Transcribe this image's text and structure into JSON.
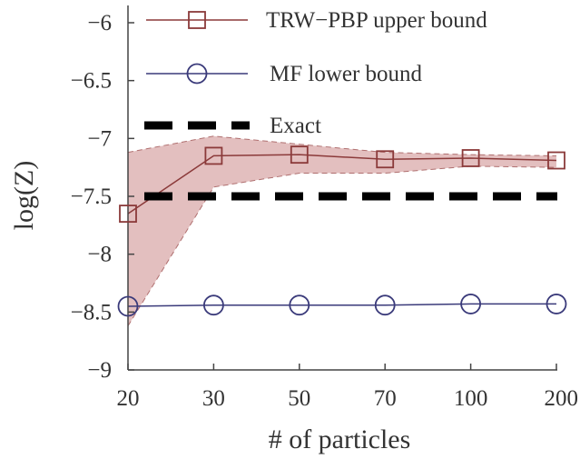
{
  "chart_data": {
    "type": "line",
    "xlabel": "# of particles",
    "ylabel": "log(Z)",
    "x_categories": [
      "20",
      "30",
      "50",
      "70",
      "100",
      "200"
    ],
    "ylim": [
      -9,
      -5.9
    ],
    "y_ticks": [
      -6,
      -6.5,
      -7,
      -7.5,
      -8,
      -8.5,
      -9
    ],
    "y_tick_labels": [
      "−6",
      "−6.5",
      "−7",
      "−7.5",
      "−8",
      "−8.5",
      "−9"
    ],
    "grid": false,
    "legend_position": "top-right",
    "series": [
      {
        "name": "TRW−PBP upper bound",
        "marker": "square",
        "color": "#8b3a3a",
        "values": [
          -7.65,
          -7.15,
          -7.14,
          -7.18,
          -7.17,
          -7.19
        ],
        "band_upper": [
          -7.12,
          -6.98,
          -7.05,
          -7.12,
          -7.14,
          -7.15
        ],
        "band_lower": [
          -8.62,
          -7.42,
          -7.3,
          -7.3,
          -7.24,
          -7.25
        ],
        "band_color": "#d9a9a9"
      },
      {
        "name": "MF lower bound",
        "marker": "circle",
        "color": "#3a3a7a",
        "values": [
          -8.45,
          -8.44,
          -8.44,
          -8.44,
          -8.43,
          -8.43
        ]
      },
      {
        "name": "Exact",
        "marker": "none",
        "style": "dashed",
        "color": "#000000",
        "values": [
          -7.5,
          -7.5,
          -7.5,
          -7.5,
          -7.5,
          -7.5
        ]
      }
    ]
  }
}
